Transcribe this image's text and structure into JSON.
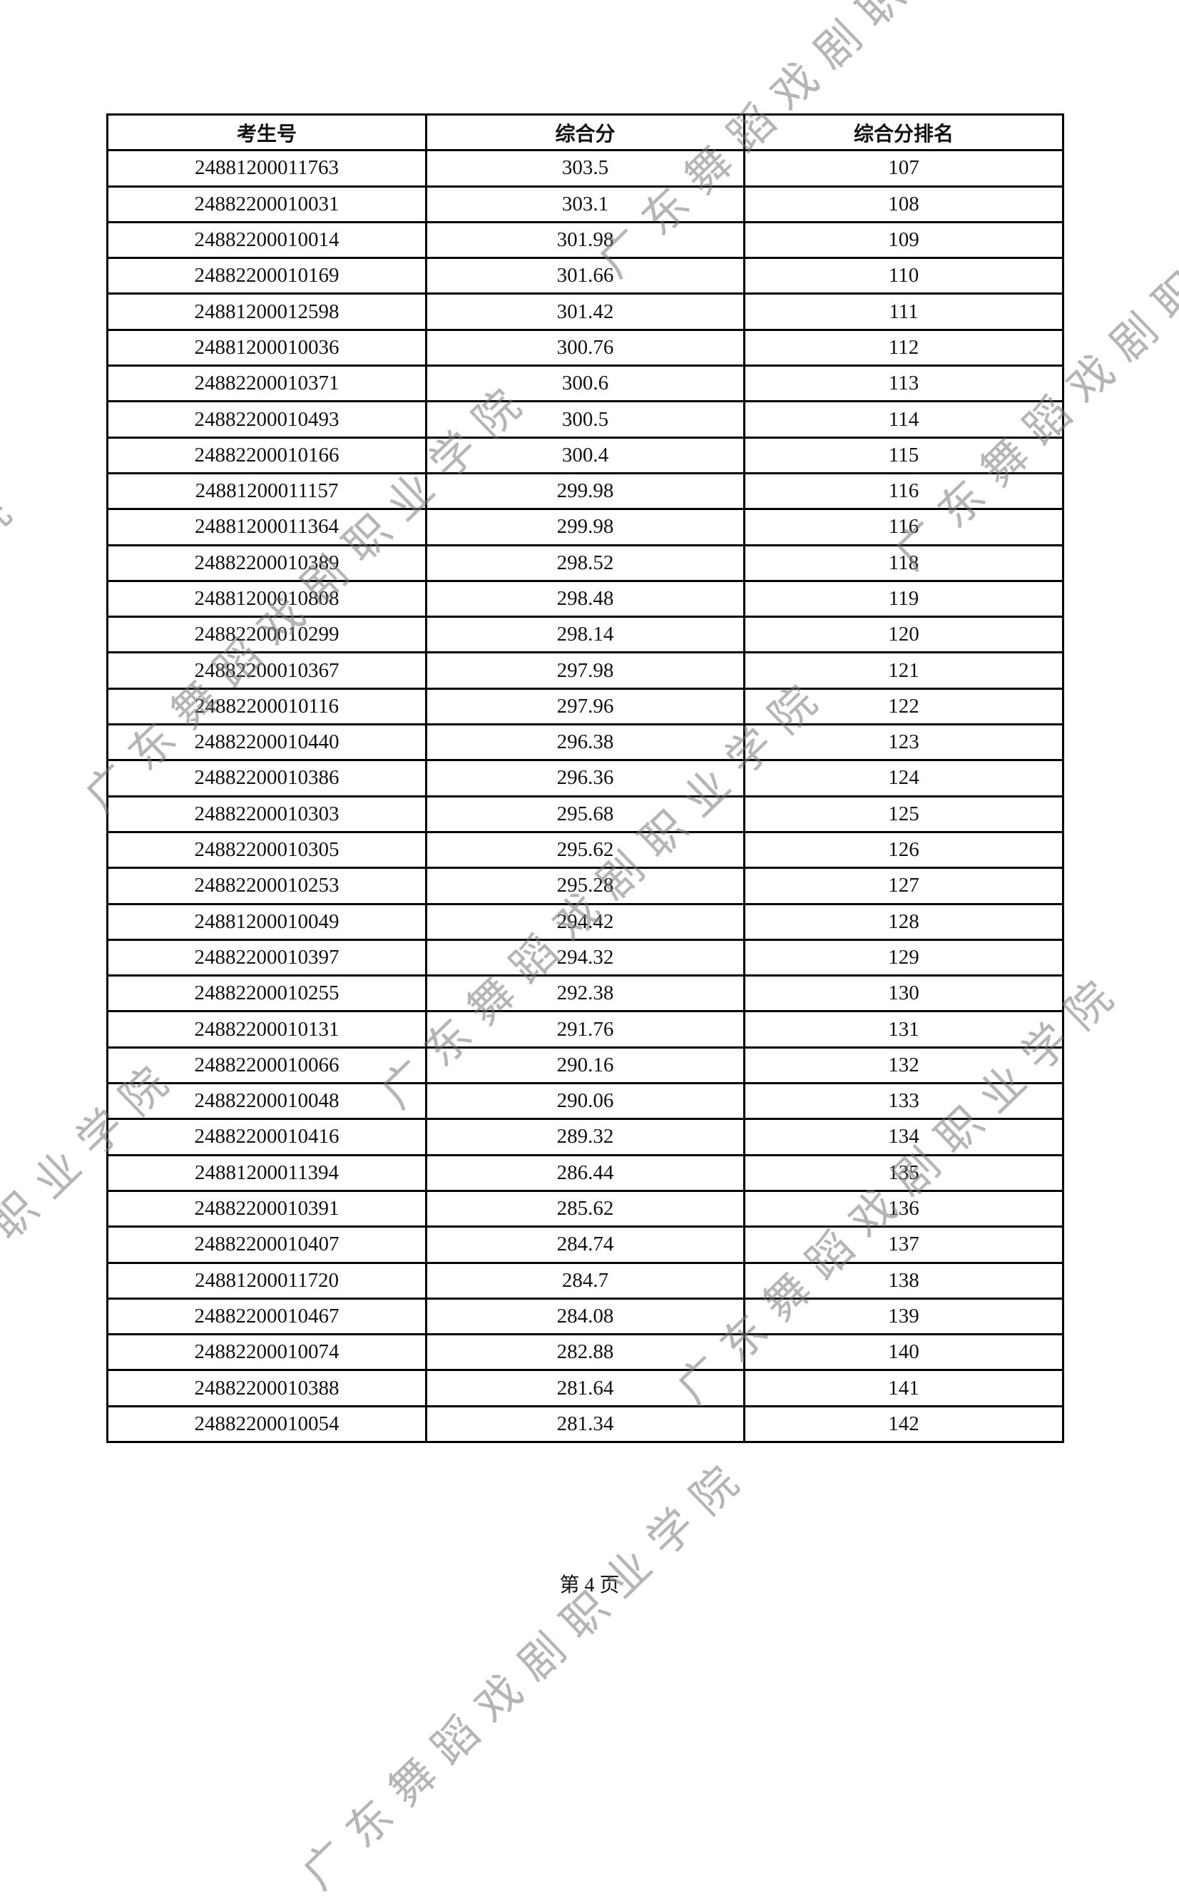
{
  "table": {
    "headers": [
      "考生号",
      "综合分",
      "综合分排名"
    ],
    "rows": [
      [
        "24881200011763",
        "303.5",
        "107"
      ],
      [
        "24882200010031",
        "303.1",
        "108"
      ],
      [
        "24882200010014",
        "301.98",
        "109"
      ],
      [
        "24882200010169",
        "301.66",
        "110"
      ],
      [
        "24881200012598",
        "301.42",
        "111"
      ],
      [
        "24881200010036",
        "300.76",
        "112"
      ],
      [
        "24882200010371",
        "300.6",
        "113"
      ],
      [
        "24882200010493",
        "300.5",
        "114"
      ],
      [
        "24882200010166",
        "300.4",
        "115"
      ],
      [
        "24881200011157",
        "299.98",
        "116"
      ],
      [
        "24881200011364",
        "299.98",
        "116"
      ],
      [
        "24882200010389",
        "298.52",
        "118"
      ],
      [
        "24881200010808",
        "298.48",
        "119"
      ],
      [
        "24882200010299",
        "298.14",
        "120"
      ],
      [
        "24882200010367",
        "297.98",
        "121"
      ],
      [
        "24882200010116",
        "297.96",
        "122"
      ],
      [
        "24882200010440",
        "296.38",
        "123"
      ],
      [
        "24882200010386",
        "296.36",
        "124"
      ],
      [
        "24882200010303",
        "295.68",
        "125"
      ],
      [
        "24882200010305",
        "295.62",
        "126"
      ],
      [
        "24882200010253",
        "295.28",
        "127"
      ],
      [
        "24881200010049",
        "294.42",
        "128"
      ],
      [
        "24882200010397",
        "294.32",
        "129"
      ],
      [
        "24882200010255",
        "292.38",
        "130"
      ],
      [
        "24882200010131",
        "291.76",
        "131"
      ],
      [
        "24882200010066",
        "290.16",
        "132"
      ],
      [
        "24882200010048",
        "290.06",
        "133"
      ],
      [
        "24882200010416",
        "289.32",
        "134"
      ],
      [
        "24881200011394",
        "286.44",
        "135"
      ],
      [
        "24882200010391",
        "285.62",
        "136"
      ],
      [
        "24882200010407",
        "284.74",
        "137"
      ],
      [
        "24881200011720",
        "284.7",
        "138"
      ],
      [
        "24882200010467",
        "284.08",
        "139"
      ],
      [
        "24882200010074",
        "282.88",
        "140"
      ],
      [
        "24882200010388",
        "281.64",
        "141"
      ],
      [
        "24882200010054",
        "281.34",
        "142"
      ]
    ]
  },
  "watermark": "广东舞蹈戏剧职业学院",
  "footer": {
    "page_label": "第 4 页"
  }
}
